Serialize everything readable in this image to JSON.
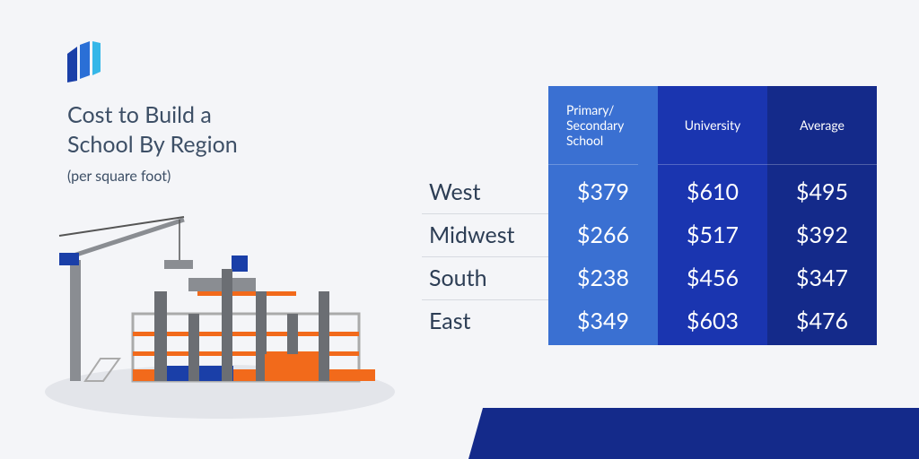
{
  "header": {
    "title": "Cost to Build a School By Region",
    "subtitle": "(per square foot)"
  },
  "table": {
    "columns": [
      "Primary/ Secondary School",
      "University",
      "Average"
    ],
    "rows": [
      [
        "West",
        "$379",
        "$610",
        "$495"
      ],
      [
        "Midwest",
        "$266",
        "$517",
        "$392"
      ],
      [
        "South",
        "$238",
        "$456",
        "$347"
      ],
      [
        "East",
        "$349",
        "$603",
        "$476"
      ]
    ]
  }
}
